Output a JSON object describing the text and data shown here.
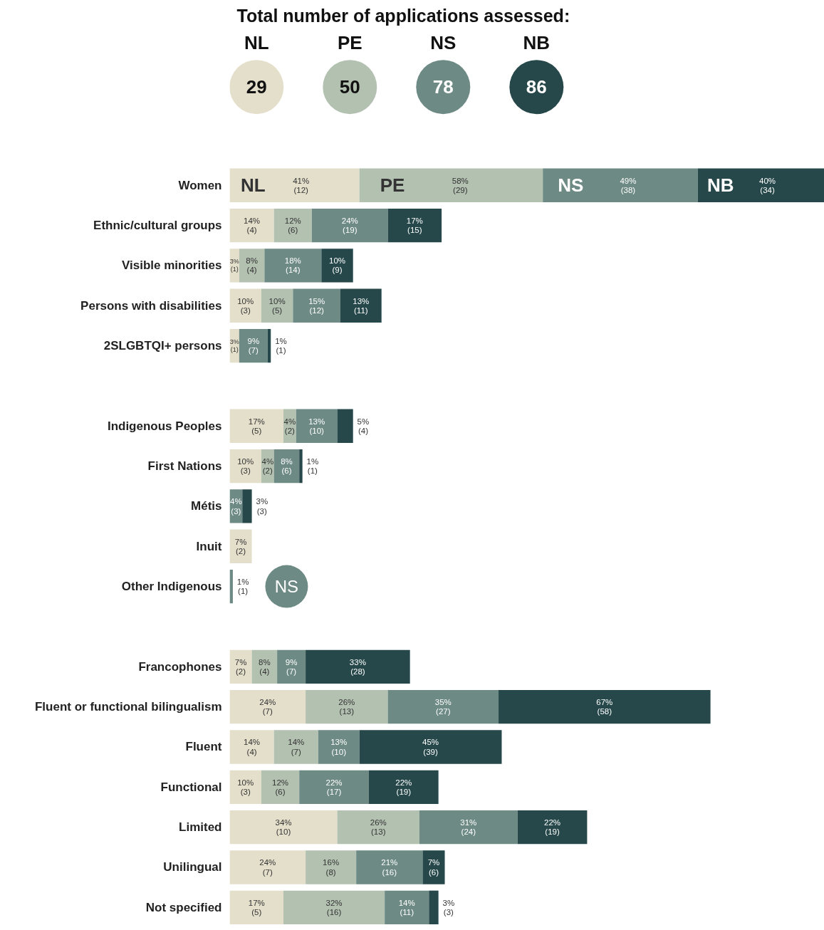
{
  "chart_data": {
    "type": "bar",
    "orientation": "horizontal",
    "stacked": true,
    "title": "Total number of applications assessed:",
    "legend": "top",
    "tick_labels": "y",
    "grid": false,
    "categories": [
      "Women",
      "Ethnic/cultural groups",
      "Visible minorities",
      "Persons with disabilities",
      "2SLGBTQI+ persons",
      null,
      "Indigenous Peoples",
      "First Nations",
      "Métis",
      "Inuit",
      "Other Indigenous",
      null,
      "Francophones",
      "Fluent or functional bilingualism",
      "Fluent",
      "Functional",
      "Limited",
      "Unilingual",
      "Not specified"
    ],
    "series": [
      {
        "name": "NL",
        "color": "#e4dfcb",
        "values": [
          41,
          14,
          3,
          10,
          3,
          null,
          17,
          10,
          0,
          7,
          0,
          null,
          7,
          24,
          14,
          10,
          34,
          24,
          17
        ],
        "value_labels": [
          "41%\n(12)",
          "14%\n(4)",
          "3%\n(1)",
          "10%\n(3)",
          "3%\n(1)",
          null,
          "17%\n(5)",
          "10%\n(3)",
          null,
          "7%\n(2)",
          null,
          null,
          "7%\n(2)",
          "24%\n(7)",
          "14%\n(4)",
          "10%\n(3)",
          "34%\n(10)",
          "24%\n(7)",
          "17%\n(5)"
        ]
      },
      {
        "name": "PE",
        "color": "#b3c1b1",
        "values": [
          58,
          12,
          8,
          10,
          0,
          null,
          4,
          4,
          0,
          0,
          0,
          null,
          8,
          26,
          14,
          12,
          26,
          16,
          32
        ],
        "value_labels": [
          "58%\n(29)",
          "12%\n(6)",
          "8%\n(4)",
          "10%\n(5)",
          null,
          null,
          "4%\n(2)",
          "4%\n(2)",
          null,
          null,
          null,
          null,
          "8%\n(4)",
          "26%\n(13)",
          "14%\n(7)",
          "12%\n(6)",
          "26%\n(13)",
          "16%\n(8)",
          "32%\n(16)"
        ]
      },
      {
        "name": "NS",
        "color": "#6d8a84",
        "values": [
          49,
          24,
          18,
          15,
          9,
          null,
          13,
          8,
          4,
          0,
          1,
          null,
          9,
          35,
          13,
          22,
          31,
          21,
          14
        ],
        "value_labels": [
          "49%\n(38)",
          "24%\n(19)",
          "18%\n(14)",
          "15%\n(12)",
          "9%\n(7)",
          null,
          "13%\n(10)",
          "8%\n(6)",
          "4%\n(3)",
          null,
          "1%\n(1)",
          null,
          "9%\n(7)",
          "35%\n(27)",
          "13%\n(10)",
          "22%\n(17)",
          "31%\n(24)",
          "21%\n(16)",
          "14%\n(11)"
        ]
      },
      {
        "name": "NB",
        "color": "#26484a",
        "values": [
          40,
          17,
          10,
          13,
          1,
          null,
          5,
          1,
          3,
          0,
          0,
          null,
          33,
          67,
          45,
          22,
          22,
          7,
          3
        ],
        "value_labels": [
          "40%\n(34)",
          "17%\n(15)",
          "10%\n(9)",
          "13%\n(11)",
          "1%\n(1)",
          null,
          "5%\n(4)",
          "1%\n(1)",
          "3%\n(3)",
          null,
          null,
          null,
          "33%\n(28)",
          "67%\n(58)",
          "45%\n(39)",
          "22%\n(19)",
          "22%\n(19)",
          "7%\n(6)",
          "3%\n(3)"
        ]
      }
    ],
    "annotations": [
      "29",
      "50",
      "78",
      "86",
      "NS"
    ]
  }
}
